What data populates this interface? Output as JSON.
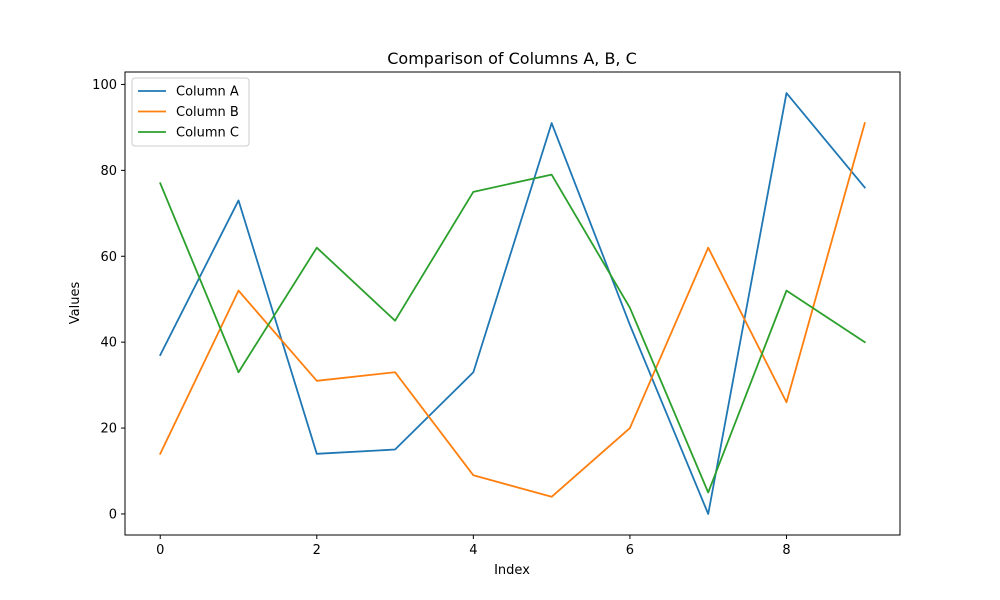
{
  "chart_data": {
    "type": "line",
    "title": "Comparison of Columns A, B, C",
    "xlabel": "Index",
    "ylabel": "Values",
    "x": [
      0,
      1,
      2,
      3,
      4,
      5,
      6,
      7,
      8,
      9
    ],
    "xlim": [
      -0.45,
      9.45
    ],
    "ylim": [
      -4.9,
      102.9
    ],
    "xticks": [
      0,
      2,
      4,
      6,
      8
    ],
    "yticks": [
      0,
      20,
      40,
      60,
      80,
      100
    ],
    "grid": false,
    "legend_position": "upper-left",
    "series": [
      {
        "name": "Column A",
        "color": "#1f77b4",
        "values": [
          37,
          73,
          14,
          15,
          33,
          91,
          44,
          0,
          98,
          76
        ]
      },
      {
        "name": "Column B",
        "color": "#ff7f0e",
        "values": [
          14,
          52,
          31,
          33,
          9,
          4,
          20,
          62,
          26,
          91
        ]
      },
      {
        "name": "Column C",
        "color": "#2ca02c",
        "values": [
          77,
          33,
          62,
          45,
          75,
          79,
          48,
          5,
          52,
          40
        ]
      }
    ]
  }
}
